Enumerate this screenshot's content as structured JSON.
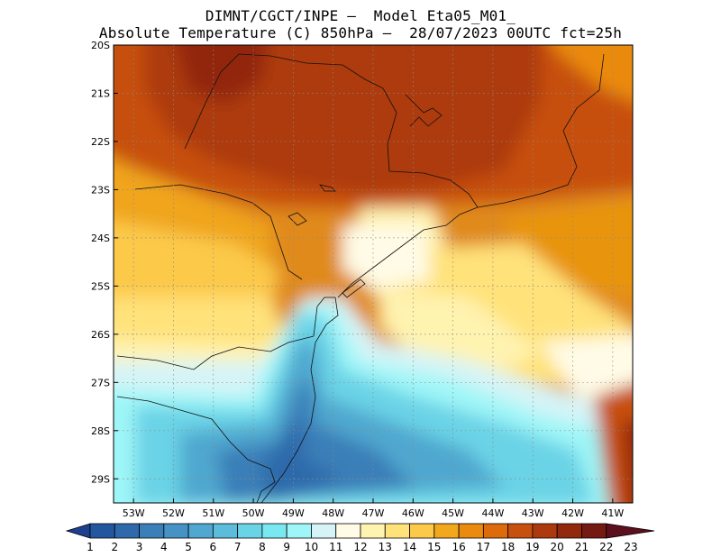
{
  "title": {
    "line1": "DIMNT/CGCT/INPE –  Model Eta05_M01_",
    "line2": "Absolute Temperature (C) 850hPa –  28/07/2023 00UTC fct=25h"
  },
  "map": {
    "lat_labels": [
      "20S",
      "21S",
      "22S",
      "23S",
      "24S",
      "25S",
      "26S",
      "27S",
      "28S",
      "29S"
    ],
    "lon_labels": [
      "53W",
      "52W",
      "51W",
      "50W",
      "49W",
      "48W",
      "47W",
      "46W",
      "45W",
      "44W",
      "43W",
      "42W",
      "41W"
    ],
    "lat_range": [
      -20,
      -29.5
    ],
    "lon_range": [
      -53.5,
      -40.5
    ],
    "grid": "dotted"
  },
  "colorbar": {
    "labels": [
      "1",
      "2",
      "3",
      "4",
      "5",
      "6",
      "7",
      "8",
      "9",
      "10",
      "11",
      "12",
      "13",
      "14",
      "15",
      "16",
      "17",
      "18",
      "19",
      "20",
      "21",
      "22",
      "23"
    ],
    "colors": [
      "#1d3f8f",
      "#2456a0",
      "#2e6aab",
      "#3a7fb8",
      "#4692c4",
      "#50a7cf",
      "#5cbcdb",
      "#6ad3e6",
      "#7ae8f0",
      "#9ff6f8",
      "#d6f4f7",
      "#fffbe6",
      "#fff3b0",
      "#ffe27a",
      "#fcc94a",
      "#f2a81c",
      "#ea8a0f",
      "#dd6a0b",
      "#c7500e",
      "#ad3a0e",
      "#92280c",
      "#741a12",
      "#5c0f1d"
    ]
  }
}
